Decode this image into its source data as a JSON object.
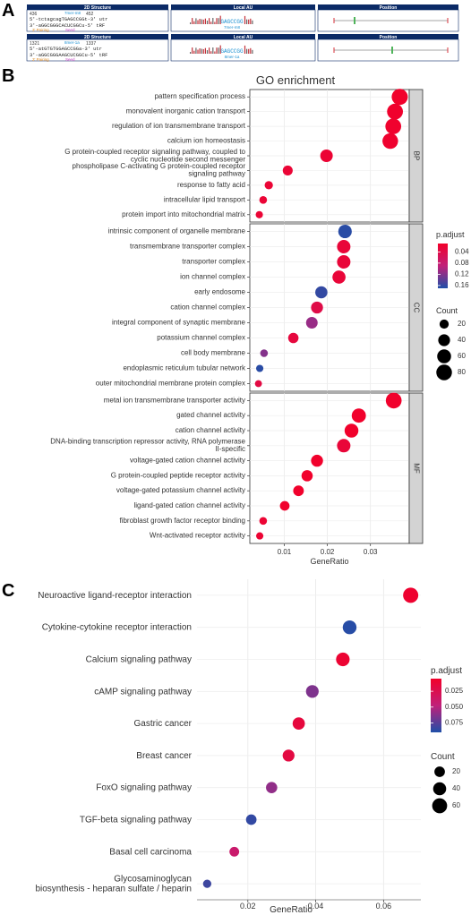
{
  "panel_letters": [
    "A",
    "B",
    "C"
  ],
  "panel_a": {
    "headers": [
      "2D Structure",
      "Local AU",
      "Position"
    ],
    "rows": [
      {
        "start": "436",
        "end": "452",
        "seed_type": "7mer-m8",
        "line_utr": "5'-tctagcagTGAGCCGGt-3' utr",
        "line_trf": "3'-aGGCGGGCACUCGGCu-5' tRF",
        "pairing_label": "3' Pairing",
        "seed_label": "Seed",
        "au_motif": "GAGCCGG",
        "au_label": "7mer-m8"
      },
      {
        "start": "1321",
        "end": "1337",
        "seed_type": "8mer-1a",
        "line_utr": "5'-atGTGTGGAGCCGGa-3' utr",
        "line_trf": "3'-aGGCGGGAAGCUCGGCu-5' tRF",
        "pairing_label": "3' Pairing",
        "seed_label": "Seed",
        "au_motif": "GAGCCGG",
        "au_label": "8mer-1a"
      }
    ]
  },
  "chart_data": [
    {
      "type": "scatter",
      "title": "GO enrichment",
      "xlabel": "GeneRatio",
      "xlim": [
        0.002,
        0.039
      ],
      "xticks": [
        0.01,
        0.02,
        0.03
      ],
      "xtick_labels": [
        "0.01",
        "0.02",
        "0.03"
      ],
      "color_legend": {
        "title": "p.adjust",
        "ticks": [
          0.04,
          0.08,
          0.12,
          0.16
        ],
        "labels": [
          "0.04",
          "0.08",
          "0.12",
          "0.16"
        ],
        "range": [
          0.01,
          0.17
        ],
        "low_color": "#f2002a",
        "high_color": "#1f4fa8"
      },
      "size_legend": {
        "title": "Count",
        "values": [
          20,
          40,
          60,
          80
        ],
        "labels": [
          "20",
          "40",
          "60",
          "80"
        ]
      },
      "facets": [
        {
          "name": "BP",
          "terms": [
            {
              "label": "pattern specification process",
              "x": 0.0368,
              "count": 86,
              "padj": 0.012
            },
            {
              "label": "monovalent inorganic cation transport",
              "x": 0.0357,
              "count": 83,
              "padj": 0.013
            },
            {
              "label": "regulation of ion transmembrane transport",
              "x": 0.0353,
              "count": 82,
              "padj": 0.014
            },
            {
              "label": "calcium ion homeostasis",
              "x": 0.0346,
              "count": 80,
              "padj": 0.015
            },
            {
              "label": "G protein-coupled receptor signaling pathway, coupled to\ncyclic nucleotide second messenger",
              "x": 0.0198,
              "count": 46,
              "padj": 0.02
            },
            {
              "label": "phospholipase C-activating G protein-coupled receptor\nsignaling pathway",
              "x": 0.0108,
              "count": 25,
              "padj": 0.022
            },
            {
              "label": "response to fatty acid",
              "x": 0.0064,
              "count": 15,
              "padj": 0.022
            },
            {
              "label": "intracellular lipid transport",
              "x": 0.0051,
              "count": 12,
              "padj": 0.022
            },
            {
              "label": "protein import into mitochondrial matrix",
              "x": 0.0042,
              "count": 10,
              "padj": 0.022
            }
          ]
        },
        {
          "name": "CC",
          "terms": [
            {
              "label": "intrinsic component of organelle membrane",
              "x": 0.0241,
              "count": 56,
              "padj": 0.165
            },
            {
              "label": "transmembrane transporter complex",
              "x": 0.0238,
              "count": 55,
              "padj": 0.025
            },
            {
              "label": "transporter complex",
              "x": 0.0238,
              "count": 55,
              "padj": 0.025
            },
            {
              "label": "ion channel complex",
              "x": 0.0227,
              "count": 52,
              "padj": 0.025
            },
            {
              "label": "early endosome",
              "x": 0.0186,
              "count": 43,
              "padj": 0.16
            },
            {
              "label": "cation channel complex",
              "x": 0.0176,
              "count": 41,
              "padj": 0.04
            },
            {
              "label": "integral component of synaptic membrane",
              "x": 0.0164,
              "count": 38,
              "padj": 0.11
            },
            {
              "label": "potassium channel complex",
              "x": 0.0121,
              "count": 28,
              "padj": 0.03
            },
            {
              "label": "cell body membrane",
              "x": 0.0053,
              "count": 12,
              "padj": 0.12
            },
            {
              "label": "endoplasmic reticulum tubular network",
              "x": 0.0043,
              "count": 10,
              "padj": 0.165
            },
            {
              "label": "outer mitochondrial membrane protein complex",
              "x": 0.004,
              "count": 9,
              "padj": 0.035
            }
          ]
        },
        {
          "name": "MF",
          "terms": [
            {
              "label": "metal ion transmembrane transporter activity",
              "x": 0.0354,
              "count": 82,
              "padj": 0.012
            },
            {
              "label": "gated channel activity",
              "x": 0.0273,
              "count": 63,
              "padj": 0.012
            },
            {
              "label": "cation channel activity",
              "x": 0.0256,
              "count": 59,
              "padj": 0.012
            },
            {
              "label": "DNA-binding transcription repressor activity, RNA polymerase\nII-specific",
              "x": 0.0238,
              "count": 55,
              "padj": 0.025
            },
            {
              "label": "voltage-gated cation channel activity",
              "x": 0.0176,
              "count": 41,
              "padj": 0.012
            },
            {
              "label": "G protein-coupled peptide receptor activity",
              "x": 0.0153,
              "count": 35,
              "padj": 0.012
            },
            {
              "label": "voltage-gated potassium channel activity",
              "x": 0.0133,
              "count": 30,
              "padj": 0.012
            },
            {
              "label": "ligand-gated cation channel activity",
              "x": 0.0101,
              "count": 23,
              "padj": 0.012
            },
            {
              "label": "fibroblast growth factor receptor binding",
              "x": 0.0051,
              "count": 12,
              "padj": 0.02
            },
            {
              "label": "Wnt-activated receptor activity",
              "x": 0.0043,
              "count": 10,
              "padj": 0.02
            }
          ]
        }
      ]
    },
    {
      "type": "scatter",
      "xlabel": "GeneRatio",
      "xlim": [
        0.005,
        0.071
      ],
      "xticks": [
        0.02,
        0.04,
        0.06
      ],
      "xtick_labels": [
        "0.02",
        "0.04",
        "0.06"
      ],
      "color_legend": {
        "title": "p.adjust",
        "ticks": [
          0.025,
          0.05,
          0.075
        ],
        "labels": [
          "0.025",
          "0.050",
          "0.075"
        ],
        "range": [
          0.005,
          0.09
        ],
        "low_color": "#f2002a",
        "high_color": "#1f4fa8"
      },
      "size_legend": {
        "title": "Count",
        "values": [
          20,
          40,
          60
        ],
        "labels": [
          "20",
          "40",
          "60"
        ]
      },
      "terms": [
        {
          "label": "Neuroactive ligand-receptor interaction",
          "x": 0.068,
          "count": 63,
          "padj": 0.008
        },
        {
          "label": "Cytokine-cytokine receptor interaction",
          "x": 0.05,
          "count": 47,
          "padj": 0.088
        },
        {
          "label": "Calcium signaling pathway",
          "x": 0.048,
          "count": 45,
          "padj": 0.01
        },
        {
          "label": "cAMP signaling pathway",
          "x": 0.039,
          "count": 37,
          "padj": 0.065
        },
        {
          "label": "Gastric cancer",
          "x": 0.035,
          "count": 33,
          "padj": 0.015
        },
        {
          "label": "Breast cancer",
          "x": 0.032,
          "count": 30,
          "padj": 0.018
        },
        {
          "label": "FoxO signaling pathway",
          "x": 0.027,
          "count": 25,
          "padj": 0.06
        },
        {
          "label": "TGF-beta signaling pathway",
          "x": 0.021,
          "count": 20,
          "padj": 0.085
        },
        {
          "label": "Basal cell carcinoma",
          "x": 0.016,
          "count": 15,
          "padj": 0.04
        },
        {
          "label": "Glycosaminoglycan\nbiosynthesis - heparan sulfate / heparin",
          "x": 0.008,
          "count": 8,
          "padj": 0.082
        }
      ]
    }
  ]
}
